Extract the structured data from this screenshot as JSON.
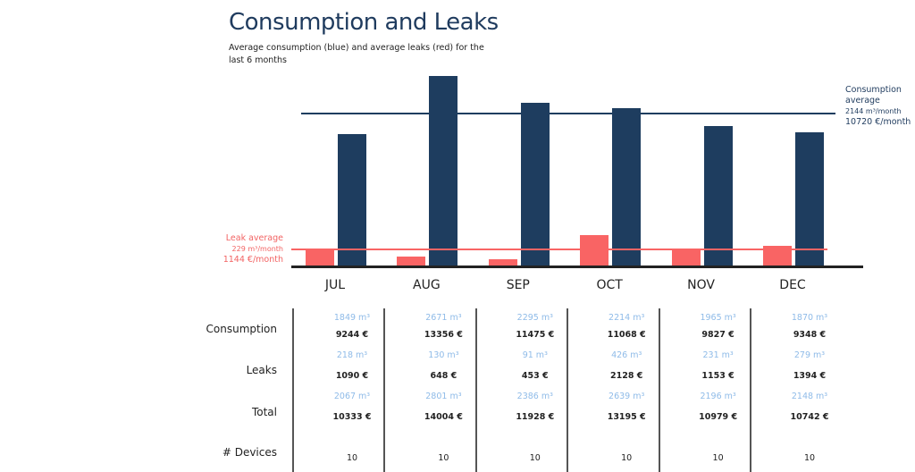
{
  "title": "Consumption and Leaks",
  "subtitle": "Average consumption (blue) and average leaks (red) for the last 6 months",
  "colors": {
    "consumption": "#1e3d5f",
    "leaks": "#f96464",
    "m3_text": "#8fbbe8"
  },
  "consumption_avg": {
    "label": "Consumption average",
    "m3": "2144 m³/month",
    "eur": "10720 €/month"
  },
  "leak_avg": {
    "label": "Leak average",
    "m3": "229 m³/month",
    "eur": "1144 €/month"
  },
  "row_labels": {
    "consumption": "Consumption",
    "leaks": "Leaks",
    "total": "Total",
    "devices": "# Devices"
  },
  "chart_data": {
    "type": "bar",
    "categories": [
      "JUL",
      "AUG",
      "SEP",
      "OCT",
      "NOV",
      "DEC"
    ],
    "series": [
      {
        "name": "Consumption",
        "values": [
          1849,
          2671,
          2295,
          2214,
          1965,
          1870
        ]
      },
      {
        "name": "Leaks",
        "values": [
          218,
          130,
          91,
          426,
          231,
          279
        ]
      }
    ],
    "consumption_average": 2144,
    "leak_average": 229,
    "unit": "m³"
  },
  "table": [
    {
      "month": "JUL",
      "cons_m3": "1849 m³",
      "cons_eur": "9244 €",
      "leak_m3": "218 m³",
      "leak_eur": "1090 €",
      "tot_m3": "2067 m³",
      "tot_eur": "10333 €",
      "devices": "10"
    },
    {
      "month": "AUG",
      "cons_m3": "2671 m³",
      "cons_eur": "13356 €",
      "leak_m3": "130 m³",
      "leak_eur": "648 €",
      "tot_m3": "2801 m³",
      "tot_eur": "14004 €",
      "devices": "10"
    },
    {
      "month": "SEP",
      "cons_m3": "2295 m³",
      "cons_eur": "11475 €",
      "leak_m3": "91 m³",
      "leak_eur": "453 €",
      "tot_m3": "2386 m³",
      "tot_eur": "11928 €",
      "devices": "10"
    },
    {
      "month": "OCT",
      "cons_m3": "2214 m³",
      "cons_eur": "11068 €",
      "leak_m3": "426 m³",
      "leak_eur": "2128 €",
      "tot_m3": "2639 m³",
      "tot_eur": "13195 €",
      "devices": "10"
    },
    {
      "month": "NOV",
      "cons_m3": "1965 m³",
      "cons_eur": "9827 €",
      "leak_m3": "231 m³",
      "leak_eur": "1153 €",
      "tot_m3": "2196 m³",
      "tot_eur": "10979 €",
      "devices": "10"
    },
    {
      "month": "DEC",
      "cons_m3": "1870 m³",
      "cons_eur": "9348 €",
      "leak_m3": "279 m³",
      "leak_eur": "1394 €",
      "tot_m3": "2148 m³",
      "tot_eur": "10742 €",
      "devices": "10"
    }
  ]
}
